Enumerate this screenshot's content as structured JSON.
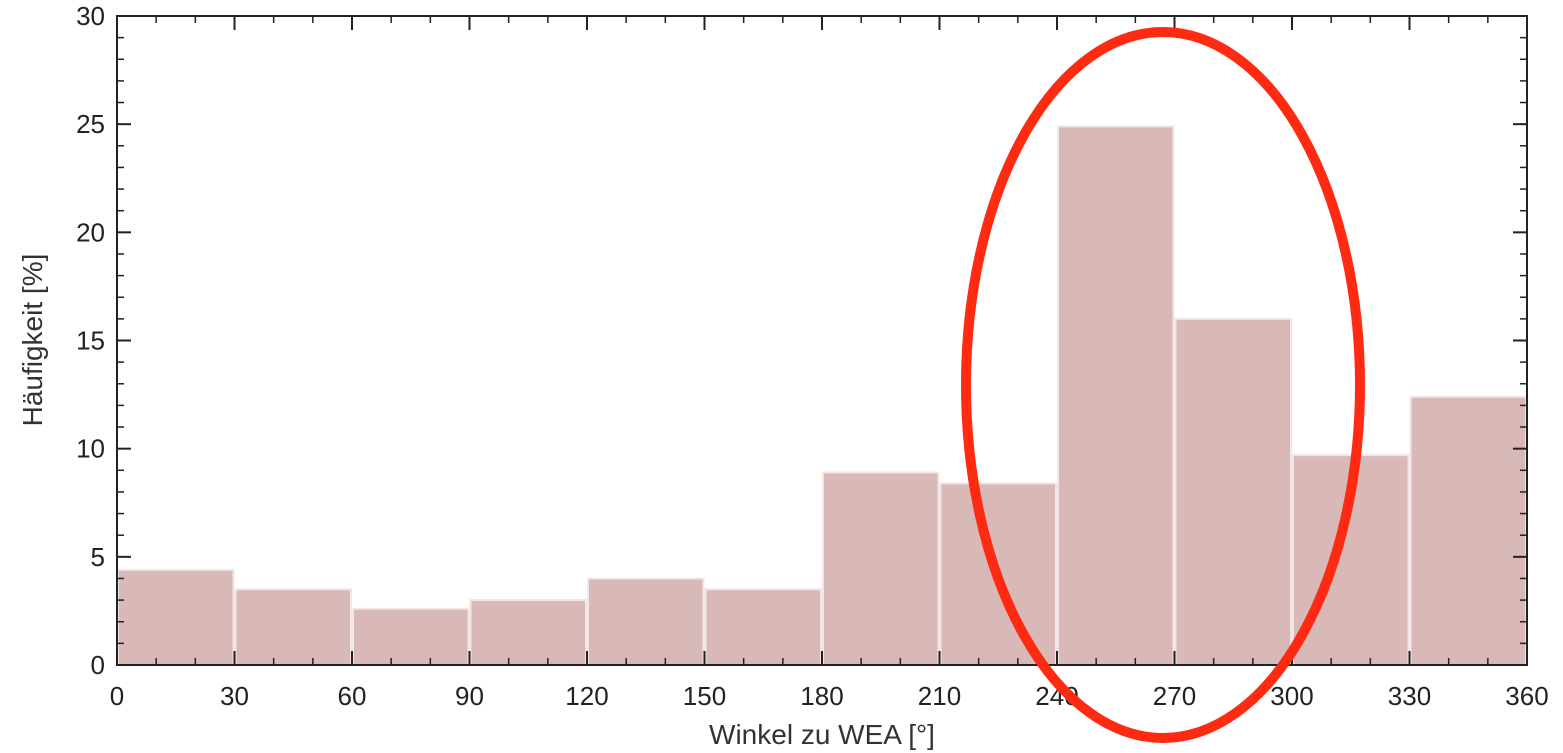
{
  "chart_data": {
    "type": "bar",
    "title": "",
    "xlabel": "Winkel zu WEA [°]",
    "ylabel": "Häufigkeit [%]",
    "xlim": [
      0,
      360
    ],
    "ylim": [
      0,
      30
    ],
    "bin_width": 30,
    "bins": [
      {
        "start": 0,
        "end": 30,
        "value": 4.4
      },
      {
        "start": 30,
        "end": 60,
        "value": 3.5
      },
      {
        "start": 60,
        "end": 90,
        "value": 2.6
      },
      {
        "start": 90,
        "end": 120,
        "value": 3.0
      },
      {
        "start": 120,
        "end": 150,
        "value": 4.0
      },
      {
        "start": 150,
        "end": 180,
        "value": 3.5
      },
      {
        "start": 180,
        "end": 210,
        "value": 8.9
      },
      {
        "start": 210,
        "end": 240,
        "value": 8.4
      },
      {
        "start": 240,
        "end": 270,
        "value": 24.9
      },
      {
        "start": 270,
        "end": 300,
        "value": 16.0
      },
      {
        "start": 300,
        "end": 330,
        "value": 9.7
      },
      {
        "start": 330,
        "end": 360,
        "value": 12.4
      }
    ],
    "x_ticks": [
      "0",
      "30",
      "60",
      "90",
      "120",
      "150",
      "180",
      "210",
      "240",
      "270",
      "300",
      "330",
      "360"
    ],
    "y_ticks": [
      "0",
      "5",
      "10",
      "15",
      "20",
      "25",
      "30"
    ],
    "grid": false,
    "bar_color": "#d9b8b8",
    "bar_edge_color": "#f2e6e6",
    "annotation": {
      "shape": "ellipse",
      "color": "#ff2a12",
      "x_range": [
        240,
        300
      ]
    }
  }
}
